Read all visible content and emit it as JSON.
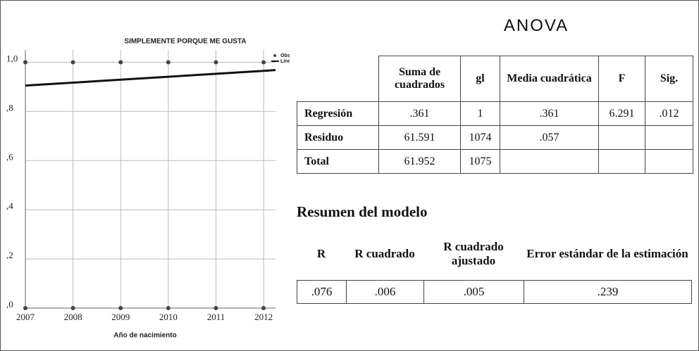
{
  "chart_data": {
    "type": "scatter",
    "title": "SIMPLEMENTE PORQUE ME GUSTA",
    "x_label": "Año de nacimiento",
    "xlim": [
      2007,
      2012.25
    ],
    "xticks": [
      2007,
      2008,
      2009,
      2010,
      2011,
      2012
    ],
    "ylim": [
      0,
      1.05
    ],
    "yticks": [
      {
        "value": 0,
        "label": ",0"
      },
      {
        "value": 0.2,
        "label": ",2"
      },
      {
        "value": 0.4,
        "label": ",4"
      },
      {
        "value": 0.6,
        "label": ",6"
      },
      {
        "value": 0.8,
        "label": ",8"
      },
      {
        "value": 1,
        "label": "1,0"
      }
    ],
    "grid": true,
    "series": [
      {
        "name": "Observado",
        "type": "scatter",
        "color": "#444444",
        "x": [
          2007,
          2008,
          2009,
          2010,
          2011,
          2012,
          2007,
          2008,
          2009,
          2010,
          2011,
          2012
        ],
        "values": [
          1,
          1,
          1,
          1,
          1,
          1,
          0,
          0,
          0,
          0,
          0,
          0
        ]
      },
      {
        "name": "Lineal",
        "type": "line",
        "color": "#111111",
        "x": [
          2007,
          2012.25
        ],
        "values": [
          0.905,
          0.968
        ]
      }
    ]
  },
  "anova": {
    "title": "ANOVA",
    "headers": [
      "Suma de cuadrados",
      "gl",
      "Media cuadrática",
      "F",
      "Sig."
    ],
    "rows": [
      {
        "label": "Regresión",
        "cells": [
          ".361",
          "1",
          ".361",
          "6.291",
          ".012"
        ]
      },
      {
        "label": "Residuo",
        "cells": [
          "61.591",
          "1074",
          ".057"
        ]
      },
      {
        "label": "Total",
        "cells": [
          "61.952",
          "1075"
        ]
      }
    ]
  },
  "model_summary": {
    "title": "Resumen del modelo",
    "headers": [
      "R",
      "R cuadrado",
      "R cuadrado ajustado",
      "Error estándar de la estimación"
    ],
    "cells": [
      ".076",
      ".006",
      ".005",
      ".239"
    ]
  }
}
